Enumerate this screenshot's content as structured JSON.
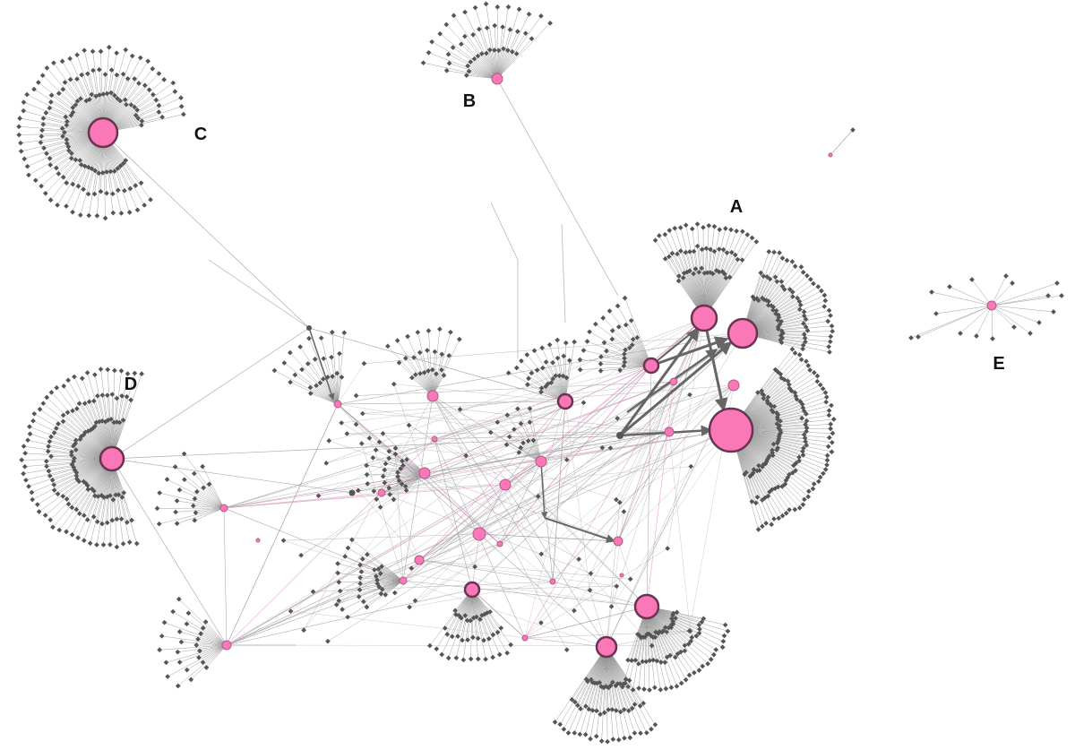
{
  "clusters": [
    {
      "label": "A"
    },
    {
      "label": "B"
    },
    {
      "label": "C"
    },
    {
      "label": "D"
    },
    {
      "label": "E"
    }
  ]
}
